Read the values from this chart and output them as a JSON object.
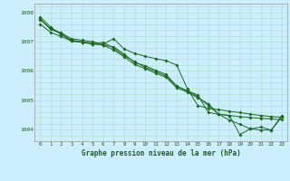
{
  "xlabel": "Graphe pression niveau de la mer (hPa)",
  "bg_color": "#cceeff",
  "grid_color": "#aaddcc",
  "line_color": "#1a6b1a",
  "ylim": [
    1003.6,
    1008.3
  ],
  "xlim": [
    -0.5,
    23.5
  ],
  "yticks": [
    1004,
    1005,
    1006,
    1007,
    1008
  ],
  "xticks": [
    0,
    1,
    2,
    3,
    4,
    5,
    6,
    7,
    8,
    9,
    10,
    11,
    12,
    13,
    14,
    15,
    16,
    17,
    18,
    19,
    20,
    21,
    22,
    23
  ],
  "series": [
    [
      1007.75,
      1007.45,
      1007.3,
      1007.1,
      1007.05,
      1007.0,
      1006.92,
      1007.1,
      1006.75,
      1006.6,
      1006.5,
      1006.42,
      1006.35,
      1006.2,
      1005.4,
      1004.82,
      1004.72,
      1004.68,
      1004.62,
      1004.58,
      1004.52,
      1004.48,
      1004.44,
      1004.42
    ],
    [
      1007.85,
      1007.5,
      1007.25,
      1007.05,
      1007.0,
      1006.95,
      1006.88,
      1006.82,
      1006.58,
      1006.28,
      1006.18,
      1006.02,
      1005.88,
      1005.48,
      1005.32,
      1005.18,
      1004.58,
      1004.52,
      1004.48,
      1004.44,
      1004.41,
      1004.38,
      1004.36,
      1004.33
    ],
    [
      1007.6,
      1007.32,
      1007.18,
      1007.02,
      1006.98,
      1006.92,
      1006.88,
      1006.72,
      1006.48,
      1006.22,
      1006.08,
      1005.92,
      1005.78,
      1005.42,
      1005.28,
      1005.08,
      1004.88,
      1004.52,
      1004.48,
      1003.83,
      1004.02,
      1003.98,
      1003.98,
      1004.43
    ],
    [
      1007.78,
      1007.42,
      1007.28,
      1007.02,
      1006.98,
      1006.92,
      1006.98,
      1006.78,
      1006.52,
      1006.32,
      1006.12,
      1005.98,
      1005.82,
      1005.48,
      1005.32,
      1005.12,
      1004.82,
      1004.52,
      1004.32,
      1004.18,
      1004.02,
      1004.08,
      1003.98,
      1004.48
    ]
  ]
}
